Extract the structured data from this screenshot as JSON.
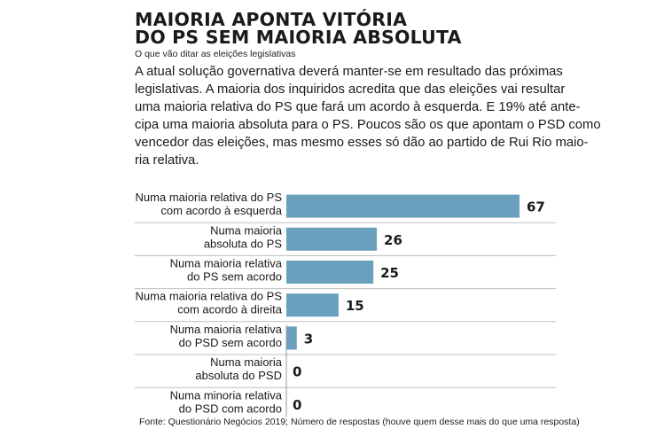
{
  "headline": {
    "line1": "MAIORIA APONTA VITÓRIA",
    "line2": "DO PS SEM MAIORIA ABSOLUTA"
  },
  "subtitle": "O que vão ditar as eleições legislativas",
  "intro_lines": [
    "A atual solução governativa deverá manter-se em resultado das próximas",
    "legislativas. A maioria dos inquiridos acredita que das eleições vai resultar",
    "uma maioria relativa do PS que fará um acordo à esquerda. E 19% até ante-",
    "cipa uma maioria absoluta para o PS. Poucos são os que apontam o PSD como",
    "vencedor das eleições, mas mesmo esses só dão ao partido de Rui  Rio maio-",
    "ria relativa."
  ],
  "source": "Fonte: Questionário Negócios 2019; Número de respostas (houve quem desse mais do  que uma resposta)",
  "colors": {
    "bar": "#6a9fbe",
    "separator": "#bfbfbf",
    "axis": "#9a9a9a"
  },
  "chart_data": {
    "type": "bar",
    "orientation": "horizontal",
    "categories": [
      [
        "Numa maioria relativa do PS",
        "com acordo à esquerda"
      ],
      [
        "Numa maioria",
        "absoluta do PS"
      ],
      [
        "Numa maioria relativa",
        "do PS sem acordo"
      ],
      [
        "Numa maioria relativa do PS",
        "com acordo à direita"
      ],
      [
        "Numa maioria relativa",
        "do PSD sem acordo"
      ],
      [
        "Numa maioria",
        "absoluta do PSD"
      ],
      [
        "Numa minoria relativa",
        "do PSD com acordo"
      ]
    ],
    "values": [
      67,
      26,
      25,
      15,
      3,
      0,
      0
    ],
    "value_labels": [
      "67",
      "26",
      "25",
      "15",
      "3",
      "0",
      "0"
    ],
    "xlim": [
      0,
      67
    ],
    "grid": false,
    "legend": "none"
  }
}
